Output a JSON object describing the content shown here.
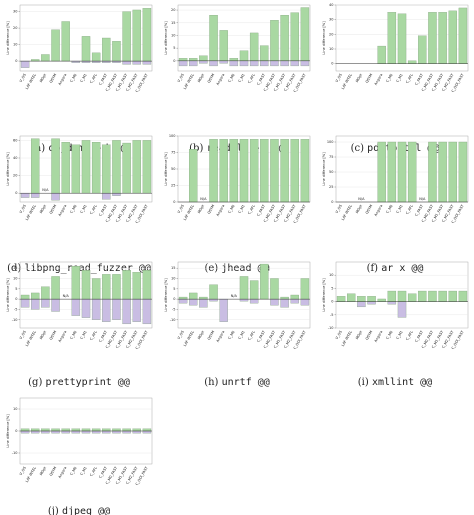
{
  "chart_data": [
    {
      "type": "bar",
      "tag": "(a)",
      "caption": "objdump -d @@",
      "ylabel": "Line difference [%]",
      "categories": [
        "V_OS",
        "LAF INTEL",
        "MOpt",
        "QSYM",
        "Angora",
        "C_M0",
        "C_M1",
        "C_AFL",
        "C_FAST",
        "C_M0_FAST",
        "C_M1_FAST",
        "C_M2_FAST",
        "C_ODI_FAST"
      ],
      "ylim": [
        -6,
        34
      ],
      "yticks": [
        0,
        10,
        20,
        30
      ],
      "grid": true,
      "series": [
        {
          "color": "#a9d8a2",
          "values": [
            0,
            1,
            4,
            19,
            24,
            0,
            15,
            5,
            14,
            12,
            30,
            31,
            32
          ]
        },
        {
          "color": "#c9bde3",
          "values": [
            -4,
            0,
            0,
            0,
            0,
            -1,
            -1,
            -1,
            -1,
            -1,
            -2,
            -2,
            -2
          ]
        }
      ]
    },
    {
      "type": "bar",
      "tag": "(b)",
      "caption": "readelf -a @@",
      "ylabel": "Line difference [%]",
      "categories": [
        "V_OS",
        "LAF INTEL",
        "MOpt",
        "QSYM",
        "Angora",
        "C_M0",
        "C_M1",
        "C_AFL",
        "C_FAST",
        "C_M0_FAST",
        "C_M1_FAST",
        "C_M2_FAST",
        "C_ODI_FAST"
      ],
      "ylim": [
        -4,
        22
      ],
      "yticks": [
        0,
        5,
        10,
        15,
        20
      ],
      "grid": true,
      "series": [
        {
          "color": "#a9d8a2",
          "values": [
            1,
            1,
            2,
            18,
            12,
            1,
            4,
            11,
            6,
            16,
            18,
            19,
            21
          ]
        },
        {
          "color": "#c9bde3",
          "values": [
            -2,
            -2,
            -1,
            -2,
            -1,
            -2,
            -2,
            -2,
            -2,
            -2,
            -2,
            -2,
            -2
          ]
        }
      ]
    },
    {
      "type": "bar",
      "tag": "(c)",
      "caption": "pdftohtml @@",
      "ylabel": "Line difference [%]",
      "categories": [
        "V_OS",
        "LAF INTEL",
        "MOpt",
        "QSYM",
        "Angora",
        "C_M0",
        "C_M1",
        "C_AFL",
        "C_FAST",
        "C_M0_FAST",
        "C_M1_FAST",
        "C_M2_FAST",
        "C_ODI_FAST"
      ],
      "ylim": [
        -5,
        40
      ],
      "yticks": [
        0,
        10,
        20,
        30,
        40
      ],
      "grid": true,
      "series": [
        {
          "color": "#a9d8a2",
          "values": [
            0,
            0,
            0,
            0,
            12,
            35,
            34,
            2,
            19,
            35,
            35,
            36,
            38
          ]
        },
        {
          "color": "#c9bde3",
          "values": [
            0,
            0,
            0,
            0,
            0,
            0,
            0,
            0,
            0,
            0,
            0,
            0,
            0
          ]
        }
      ]
    },
    {
      "type": "bar",
      "tag": "(d)",
      "caption": "libpng_read_fuzzer @@",
      "ylabel": "Line difference [%]",
      "annotation": "N/A",
      "categories": [
        "V_OS",
        "LAF INTEL",
        "MOpt",
        "QSYM",
        "Angora",
        "C_M0",
        "C_M1",
        "C_AFL",
        "C_FAST",
        "C_M0_FAST",
        "C_M1_FAST",
        "C_M2_FAST",
        "C_ODI_FAST"
      ],
      "ylim": [
        -10,
        65
      ],
      "yticks": [
        0,
        20,
        40,
        60
      ],
      "grid": true,
      "series": [
        {
          "color": "#a9d8a2",
          "values": [
            0,
            62,
            null,
            62,
            58,
            55,
            60,
            58,
            55,
            60,
            57,
            60,
            60
          ]
        },
        {
          "color": "#c9bde3",
          "values": [
            -5,
            -5,
            null,
            -8,
            0,
            0,
            0,
            0,
            -7,
            -3,
            0,
            0,
            0
          ]
        }
      ]
    },
    {
      "type": "bar",
      "tag": "(e)",
      "caption": "jhead @@",
      "ylabel": "Line difference [%]",
      "annotation": "N/A",
      "categories": [
        "V_OS",
        "LAF INTEL",
        "MOpt",
        "QSYM",
        "Angora",
        "C_M0",
        "C_M1",
        "C_AFL",
        "C_FAST",
        "C_M0_FAST",
        "C_M1_FAST",
        "C_M2_FAST",
        "C_ODI_FAST"
      ],
      "ylim": [
        0,
        100
      ],
      "yticks": [
        0,
        25,
        50,
        75,
        100
      ],
      "grid": true,
      "series": [
        {
          "color": "#a9d8a2",
          "values": [
            0,
            80,
            null,
            95,
            95,
            95,
            95,
            95,
            95,
            95,
            95,
            95,
            95
          ]
        },
        {
          "color": "#c9bde3",
          "values": [
            0,
            0,
            null,
            0,
            0,
            0,
            0,
            0,
            0,
            0,
            0,
            0,
            0
          ]
        }
      ]
    },
    {
      "type": "bar",
      "tag": "(f)",
      "caption": "ar x @@",
      "ylabel": "Line difference [%]",
      "annotation": "N/A",
      "categories": [
        "V_OS",
        "LAF INTEL",
        "MOpt",
        "QSYM",
        "Angora",
        "C_M0",
        "C_M1",
        "C_AFL",
        "C_FAST",
        "C_M0_FAST",
        "C_M1_FAST",
        "C_M2_FAST",
        "C_ODI_FAST"
      ],
      "ylim": [
        0,
        110
      ],
      "yticks": [
        0,
        25,
        50,
        75,
        100
      ],
      "grid": true,
      "series": [
        {
          "color": "#a9d8a2",
          "values": [
            0,
            0,
            null,
            0,
            100,
            100,
            100,
            100,
            null,
            100,
            100,
            100,
            100
          ]
        },
        {
          "color": "#c9bde3",
          "values": [
            0,
            0,
            null,
            0,
            0,
            0,
            0,
            0,
            null,
            0,
            0,
            0,
            0
          ]
        }
      ]
    },
    {
      "type": "bar",
      "tag": "(g)",
      "caption": "prettyprint @@",
      "ylabel": "Line difference [%]",
      "annotation": "N/A",
      "categories": [
        "V_OS",
        "LAF INTEL",
        "MOpt",
        "QSYM",
        "Angora",
        "C_M0",
        "C_M1",
        "C_AFL",
        "C_FAST",
        "C_M0_FAST",
        "C_M1_FAST",
        "C_M2_FAST",
        "C_ODI_FAST"
      ],
      "ylim": [
        -14,
        18
      ],
      "yticks": [
        -10,
        -5,
        0,
        5,
        10,
        15
      ],
      "grid": true,
      "series": [
        {
          "color": "#a9d8a2",
          "values": [
            2,
            3,
            6,
            11,
            null,
            16,
            14,
            10,
            12,
            12,
            14,
            13,
            14
          ]
        },
        {
          "color": "#c9bde3",
          "values": [
            -4,
            -5,
            -4,
            -6,
            null,
            -8,
            -9,
            -10,
            -11,
            -10,
            -12,
            -11,
            -12
          ]
        }
      ]
    },
    {
      "type": "bar",
      "tag": "(h)",
      "caption": "unrtf @@",
      "ylabel": "Line difference [%]",
      "annotation": "N/A",
      "categories": [
        "V_OS",
        "LAF INTEL",
        "MOpt",
        "QSYM",
        "Angora",
        "C_M0",
        "C_M1",
        "C_AFL",
        "C_FAST",
        "C_M0_FAST",
        "C_M1_FAST",
        "C_M2_FAST",
        "C_ODI_FAST"
      ],
      "ylim": [
        -14,
        18
      ],
      "yticks": [
        -10,
        -5,
        0,
        5,
        10,
        15
      ],
      "grid": true,
      "series": [
        {
          "color": "#a9d8a2",
          "values": [
            1,
            3,
            1,
            7,
            0,
            null,
            11,
            9,
            17,
            10,
            1,
            2,
            10
          ]
        },
        {
          "color": "#c9bde3",
          "values": [
            -2,
            -3,
            -4,
            -1,
            -11,
            null,
            -1,
            -2,
            0,
            -3,
            -4,
            -2,
            -3
          ]
        }
      ]
    },
    {
      "type": "bar",
      "tag": "(i)",
      "caption": "xmllint @@",
      "ylabel": "Line difference [%]",
      "categories": [
        "V_OS",
        "LAF INTEL",
        "MOpt",
        "QSYM",
        "Angora",
        "C_M0",
        "C_M1",
        "C_AFL",
        "C_FAST",
        "C_M0_FAST",
        "C_M1_FAST",
        "C_M2_FAST",
        "C_ODI_FAST"
      ],
      "ylim": [
        -10,
        15
      ],
      "yticks": [
        -10,
        -5,
        0,
        5,
        10
      ],
      "grid": true,
      "series": [
        {
          "color": "#a9d8a2",
          "values": [
            2,
            3,
            2,
            2,
            1,
            4,
            4,
            3,
            4,
            4,
            4,
            4,
            4
          ]
        },
        {
          "color": "#c9bde3",
          "values": [
            0,
            0,
            -2,
            -1,
            0,
            -1,
            -6,
            0,
            0,
            0,
            0,
            0,
            0
          ]
        }
      ]
    },
    {
      "type": "bar",
      "tag": "(j)",
      "caption": "djpeg @@",
      "ylabel": "Line difference [%]",
      "categories": [
        "V_OS",
        "LAF INTEL",
        "MOpt",
        "QSYM",
        "Angora",
        "C_M0",
        "C_M1",
        "C_AFL",
        "C_FAST",
        "C_M0_FAST",
        "C_M1_FAST",
        "C_M2_FAST",
        "C_ODI_FAST"
      ],
      "ylim": [
        -15,
        15
      ],
      "yticks": [
        -10,
        0,
        10
      ],
      "grid": true,
      "series": [
        {
          "color": "#a9d8a2",
          "values": [
            1,
            1,
            1,
            1,
            1,
            1,
            1,
            1,
            1,
            1,
            1,
            1,
            1
          ]
        },
        {
          "color": "#c9bde3",
          "values": [
            -1,
            -1,
            -1,
            -1,
            -1,
            -1,
            -1,
            -1,
            -1,
            -1,
            -1,
            -1,
            -1
          ]
        }
      ]
    }
  ]
}
